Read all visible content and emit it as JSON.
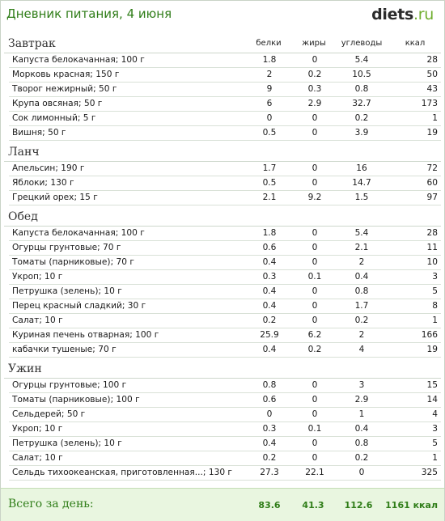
{
  "header": {
    "title": "Дневник питания, 4 июня",
    "logo_main": "diets",
    "logo_suffix": ".ru"
  },
  "columns": {
    "protein": "белки",
    "fat": "жиры",
    "carbs": "углеводы",
    "kcal": "ккал"
  },
  "sections": [
    {
      "title": "Завтрак",
      "rows": [
        {
          "name": "Капуста белокачанная; 100 г",
          "p": "1.8",
          "f": "0",
          "c": "5.4",
          "k": "28"
        },
        {
          "name": "Морковь красная; 150 г",
          "p": "2",
          "f": "0.2",
          "c": "10.5",
          "k": "50"
        },
        {
          "name": "Творог нежирный; 50 г",
          "p": "9",
          "f": "0.3",
          "c": "0.8",
          "k": "43"
        },
        {
          "name": "Крупа овсяная; 50 г",
          "p": "6",
          "f": "2.9",
          "c": "32.7",
          "k": "173"
        },
        {
          "name": "Сок лимонный; 5 г",
          "p": "0",
          "f": "0",
          "c": "0.2",
          "k": "1"
        },
        {
          "name": "Вишня; 50 г",
          "p": "0.5",
          "f": "0",
          "c": "3.9",
          "k": "19"
        }
      ]
    },
    {
      "title": "Ланч",
      "rows": [
        {
          "name": "Апельсин; 190 г",
          "p": "1.7",
          "f": "0",
          "c": "16",
          "k": "72"
        },
        {
          "name": "Яблоки; 130 г",
          "p": "0.5",
          "f": "0",
          "c": "14.7",
          "k": "60"
        },
        {
          "name": "Грецкий орех; 15 г",
          "p": "2.1",
          "f": "9.2",
          "c": "1.5",
          "k": "97"
        }
      ]
    },
    {
      "title": "Обед",
      "rows": [
        {
          "name": "Капуста белокачанная; 100 г",
          "p": "1.8",
          "f": "0",
          "c": "5.4",
          "k": "28"
        },
        {
          "name": "Огурцы грунтовые; 70 г",
          "p": "0.6",
          "f": "0",
          "c": "2.1",
          "k": "11"
        },
        {
          "name": "Томаты (парниковые); 70 г",
          "p": "0.4",
          "f": "0",
          "c": "2",
          "k": "10"
        },
        {
          "name": "Укроп; 10 г",
          "p": "0.3",
          "f": "0.1",
          "c": "0.4",
          "k": "3"
        },
        {
          "name": "Петрушка (зелень); 10 г",
          "p": "0.4",
          "f": "0",
          "c": "0.8",
          "k": "5"
        },
        {
          "name": "Перец красный сладкий; 30 г",
          "p": "0.4",
          "f": "0",
          "c": "1.7",
          "k": "8"
        },
        {
          "name": "Салат; 10 г",
          "p": "0.2",
          "f": "0",
          "c": "0.2",
          "k": "1"
        },
        {
          "name": "Куриная печень отварная; 100 г",
          "p": "25.9",
          "f": "6.2",
          "c": "2",
          "k": "166"
        },
        {
          "name": "кабачки тушеные; 70 г",
          "p": "0.4",
          "f": "0.2",
          "c": "4",
          "k": "19"
        }
      ]
    },
    {
      "title": "Ужин",
      "rows": [
        {
          "name": "Огурцы грунтовые; 100 г",
          "p": "0.8",
          "f": "0",
          "c": "3",
          "k": "15"
        },
        {
          "name": "Томаты (парниковые); 100 г",
          "p": "0.6",
          "f": "0",
          "c": "2.9",
          "k": "14"
        },
        {
          "name": "Сельдерей; 50 г",
          "p": "0",
          "f": "0",
          "c": "1",
          "k": "4"
        },
        {
          "name": "Укроп; 10 г",
          "p": "0.3",
          "f": "0.1",
          "c": "0.4",
          "k": "3"
        },
        {
          "name": "Петрушка (зелень); 10 г",
          "p": "0.4",
          "f": "0",
          "c": "0.8",
          "k": "5"
        },
        {
          "name": "Салат; 10 г",
          "p": "0.2",
          "f": "0",
          "c": "0.2",
          "k": "1"
        },
        {
          "name": "Сельдь тихоокеанская, приготовленная...; 130 г",
          "p": "27.3",
          "f": "22.1",
          "c": "0",
          "k": "325"
        }
      ]
    }
  ],
  "total": {
    "label": "Всего за день:",
    "p": "83.6",
    "f": "41.3",
    "c": "112.6",
    "k": "1161 ккал"
  },
  "colors": {
    "accent": "#2f7d18",
    "logo_suffix": "#6fae2e",
    "total_bg": "#e9f6e0"
  }
}
